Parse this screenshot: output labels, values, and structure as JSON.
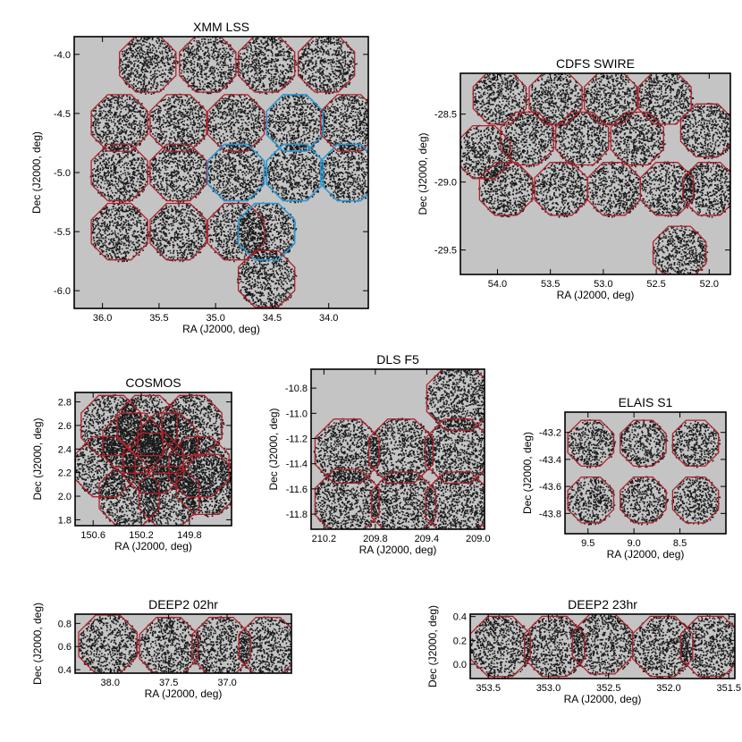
{
  "colors": {
    "background": "#ffffff",
    "coverage": "#c4c4c4",
    "source": "#1a1a1a",
    "field_default": "#b0202c",
    "field_highlight": "#2a97d6"
  },
  "chart_data": [
    {
      "id": "xmm",
      "type": "scatter",
      "title": "XMM LSS",
      "xlabel": "RA (J2000, deg)",
      "ylabel": "Dec (J2000, deg)",
      "xlim": [
        36.25,
        33.65
      ],
      "ylim": [
        -6.15,
        -3.85
      ],
      "xticks": [
        {
          "v": 36.0,
          "label": "36.0"
        },
        {
          "v": 35.5,
          "label": "35.5"
        },
        {
          "v": 35.0,
          "label": "35.0"
        },
        {
          "v": 34.5,
          "label": "34.5"
        },
        {
          "v": 34.0,
          "label": "34.0"
        }
      ],
      "yticks": [
        {
          "v": -4.0,
          "label": "-4.0"
        },
        {
          "v": -4.5,
          "label": "-4.5"
        },
        {
          "v": -5.0,
          "label": "-5.0"
        },
        {
          "v": -5.5,
          "label": "-5.5"
        },
        {
          "v": -6.0,
          "label": "-6.0"
        }
      ],
      "radius": 0.27,
      "fields": [
        {
          "ra": 35.6,
          "dec": -4.08,
          "highlight": false
        },
        {
          "ra": 35.07,
          "dec": -4.08,
          "highlight": false
        },
        {
          "ra": 34.55,
          "dec": -4.08,
          "highlight": false
        },
        {
          "ra": 34.02,
          "dec": -4.08,
          "highlight": false
        },
        {
          "ra": 35.85,
          "dec": -4.58,
          "highlight": false
        },
        {
          "ra": 35.33,
          "dec": -4.58,
          "highlight": false
        },
        {
          "ra": 34.82,
          "dec": -4.58,
          "highlight": false
        },
        {
          "ra": 34.3,
          "dec": -4.58,
          "highlight": true
        },
        {
          "ra": 33.82,
          "dec": -4.58,
          "highlight": false
        },
        {
          "ra": 35.85,
          "dec": -5.0,
          "highlight": false
        },
        {
          "ra": 35.33,
          "dec": -5.0,
          "highlight": false
        },
        {
          "ra": 34.82,
          "dec": -5.0,
          "highlight": true
        },
        {
          "ra": 34.3,
          "dec": -5.0,
          "highlight": true
        },
        {
          "ra": 33.82,
          "dec": -5.0,
          "highlight": true
        },
        {
          "ra": 35.85,
          "dec": -5.5,
          "highlight": false
        },
        {
          "ra": 35.33,
          "dec": -5.5,
          "highlight": false
        },
        {
          "ra": 34.82,
          "dec": -5.5,
          "highlight": false
        },
        {
          "ra": 34.55,
          "dec": -5.5,
          "highlight": true
        },
        {
          "ra": 34.55,
          "dec": -5.9,
          "highlight": false
        }
      ]
    },
    {
      "id": "cdfs",
      "type": "scatter",
      "title": "CDFS SWIRE",
      "xlabel": "RA (J2000, deg)",
      "ylabel": "Dec (J2000, deg)",
      "xlim": [
        54.35,
        51.8
      ],
      "ylim": [
        -29.68,
        -28.2
      ],
      "xticks": [
        {
          "v": 54.0,
          "label": "54.0"
        },
        {
          "v": 53.5,
          "label": "53.5"
        },
        {
          "v": 53.0,
          "label": "53.0"
        },
        {
          "v": 52.5,
          "label": "52.5"
        },
        {
          "v": 52.0,
          "label": "52.0"
        }
      ],
      "yticks": [
        {
          "v": -28.5,
          "label": "-28.5"
        },
        {
          "v": -29.0,
          "label": "-29.0"
        },
        {
          "v": -29.5,
          "label": "-29.5"
        }
      ],
      "radius": 0.27,
      "fields": [
        {
          "ra": 53.98,
          "dec": -28.38,
          "highlight": false
        },
        {
          "ra": 53.45,
          "dec": -28.38,
          "highlight": false
        },
        {
          "ra": 52.93,
          "dec": -28.38,
          "highlight": false
        },
        {
          "ra": 52.42,
          "dec": -28.38,
          "highlight": false
        },
        {
          "ra": 53.72,
          "dec": -28.68,
          "highlight": false
        },
        {
          "ra": 53.2,
          "dec": -28.68,
          "highlight": false
        },
        {
          "ra": 52.68,
          "dec": -28.68,
          "highlight": false
        },
        {
          "ra": 52.02,
          "dec": -28.62,
          "highlight": false
        },
        {
          "ra": 54.13,
          "dec": -28.78,
          "highlight": false
        },
        {
          "ra": 53.92,
          "dec": -29.05,
          "highlight": false
        },
        {
          "ra": 53.4,
          "dec": -29.05,
          "highlight": false
        },
        {
          "ra": 52.9,
          "dec": -29.05,
          "highlight": false
        },
        {
          "ra": 52.4,
          "dec": -29.05,
          "highlight": false
        },
        {
          "ra": 52.0,
          "dec": -29.05,
          "highlight": false
        },
        {
          "ra": 52.28,
          "dec": -29.52,
          "highlight": false
        }
      ]
    },
    {
      "id": "cosmos",
      "type": "scatter",
      "title": "COSMOS",
      "xlabel": "RA (J2000, deg)",
      "ylabel": "Dec (J2000, deg)",
      "xlim": [
        150.75,
        149.45
      ],
      "ylim": [
        1.75,
        2.88
      ],
      "xticks": [
        {
          "v": 150.6,
          "label": "150.6"
        },
        {
          "v": 150.2,
          "label": "150.2"
        },
        {
          "v": 149.8,
          "label": "149.8"
        }
      ],
      "yticks": [
        {
          "v": 1.8,
          "label": "1.8"
        },
        {
          "v": 2.0,
          "label": "2.0"
        },
        {
          "v": 2.2,
          "label": "2.2"
        },
        {
          "v": 2.4,
          "label": "2.4"
        },
        {
          "v": 2.6,
          "label": "2.6"
        },
        {
          "v": 2.8,
          "label": "2.8"
        }
      ],
      "radius": 0.27,
      "fields": [
        {
          "ra": 150.45,
          "dec": 2.6,
          "highlight": false
        },
        {
          "ra": 150.15,
          "dec": 2.6,
          "highlight": false
        },
        {
          "ra": 149.78,
          "dec": 2.6,
          "highlight": false
        },
        {
          "ra": 150.27,
          "dec": 2.45,
          "highlight": false
        },
        {
          "ra": 149.98,
          "dec": 2.45,
          "highlight": false
        },
        {
          "ra": 150.5,
          "dec": 2.25,
          "highlight": false
        },
        {
          "ra": 150.1,
          "dec": 2.28,
          "highlight": false
        },
        {
          "ra": 149.72,
          "dec": 2.25,
          "highlight": false
        },
        {
          "ra": 150.3,
          "dec": 2.0,
          "highlight": false
        },
        {
          "ra": 149.97,
          "dec": 2.0,
          "highlight": false
        },
        {
          "ra": 149.66,
          "dec": 2.1,
          "highlight": false
        }
      ]
    },
    {
      "id": "dls",
      "type": "scatter",
      "title": "DLS F5",
      "xlabel": "RA (J2000, deg)",
      "ylabel": "Dec (J2000, deg)",
      "xlim": [
        210.3,
        208.95
      ],
      "ylim": [
        -11.92,
        -10.65
      ],
      "xticks": [
        {
          "v": 210.2,
          "label": "210.2"
        },
        {
          "v": 209.8,
          "label": "209.8"
        },
        {
          "v": 209.4,
          "label": "209.4"
        },
        {
          "v": 209.0,
          "label": "209.0"
        }
      ],
      "yticks": [
        {
          "v": -10.8,
          "label": "-10.8"
        },
        {
          "v": -11.0,
          "label": "-11.0"
        },
        {
          "v": -11.2,
          "label": "-11.2"
        },
        {
          "v": -11.4,
          "label": "-11.4"
        },
        {
          "v": -11.6,
          "label": "-11.6"
        },
        {
          "v": -11.8,
          "label": "-11.8"
        }
      ],
      "radius": 0.27,
      "fields": [
        {
          "ra": 209.15,
          "dec": -10.88,
          "highlight": false
        },
        {
          "ra": 210.02,
          "dec": -11.3,
          "highlight": false
        },
        {
          "ra": 209.6,
          "dec": -11.3,
          "highlight": false
        },
        {
          "ra": 209.16,
          "dec": -11.3,
          "highlight": false
        },
        {
          "ra": 210.02,
          "dec": -11.7,
          "highlight": false
        },
        {
          "ra": 209.58,
          "dec": -11.72,
          "highlight": false
        },
        {
          "ra": 209.16,
          "dec": -11.72,
          "highlight": false
        }
      ]
    },
    {
      "id": "elais",
      "type": "scatter",
      "title": "ELAIS S1",
      "xlabel": "RA (J2000, deg)",
      "ylabel": "Dec (J2000, deg)",
      "xlim": [
        9.75,
        8.0
      ],
      "ylim": [
        -43.95,
        -43.05
      ],
      "xticks": [
        {
          "v": 9.5,
          "label": "9.5"
        },
        {
          "v": 9.0,
          "label": "9.0"
        },
        {
          "v": 8.5,
          "label": "8.5"
        }
      ],
      "yticks": [
        {
          "v": -43.2,
          "label": "-43.2"
        },
        {
          "v": -43.4,
          "label": "-43.4"
        },
        {
          "v": -43.6,
          "label": "-43.6"
        },
        {
          "v": -43.8,
          "label": "-43.8"
        }
      ],
      "radius": 0.27,
      "fields": [
        {
          "ra": 9.47,
          "dec": -43.28,
          "highlight": false
        },
        {
          "ra": 8.9,
          "dec": -43.28,
          "highlight": false
        },
        {
          "ra": 8.33,
          "dec": -43.28,
          "highlight": false
        },
        {
          "ra": 9.47,
          "dec": -43.7,
          "highlight": false
        },
        {
          "ra": 8.9,
          "dec": -43.7,
          "highlight": false
        },
        {
          "ra": 8.33,
          "dec": -43.7,
          "highlight": false
        }
      ]
    },
    {
      "id": "deep2_02",
      "type": "scatter",
      "title": "DEEP2 02hr",
      "xlabel": "RA (J2000, deg)",
      "ylabel": "Dec (J2000, deg)",
      "xlim": [
        38.3,
        36.45
      ],
      "ylim": [
        0.37,
        0.88
      ],
      "xticks": [
        {
          "v": 38.0,
          "label": "38.0"
        },
        {
          "v": 37.5,
          "label": "37.5"
        },
        {
          "v": 37.0,
          "label": "37.0"
        }
      ],
      "yticks": [
        {
          "v": 0.4,
          "label": "0.4"
        },
        {
          "v": 0.6,
          "label": "0.6"
        },
        {
          "v": 0.8,
          "label": "0.8"
        }
      ],
      "radius": 0.27,
      "fields": [
        {
          "ra": 38.02,
          "dec": 0.62,
          "highlight": false
        },
        {
          "ra": 37.5,
          "dec": 0.6,
          "highlight": false
        },
        {
          "ra": 37.05,
          "dec": 0.6,
          "highlight": false
        },
        {
          "ra": 36.65,
          "dec": 0.6,
          "highlight": false
        }
      ]
    },
    {
      "id": "deep2_23",
      "type": "scatter",
      "title": "DEEP2 23hr",
      "xlabel": "RA (J2000, deg)",
      "ylabel": "Dec (J2000, deg)",
      "xlim": [
        353.65,
        351.45
      ],
      "ylim": [
        -0.12,
        0.42
      ],
      "xticks": [
        {
          "v": 353.5,
          "label": "353.5"
        },
        {
          "v": 353.0,
          "label": "353.0"
        },
        {
          "v": 352.5,
          "label": "352.5"
        },
        {
          "v": 352.0,
          "label": "352.0"
        },
        {
          "v": 351.5,
          "label": "351.5"
        }
      ],
      "yticks": [
        {
          "v": 0.0,
          "label": "0.0"
        },
        {
          "v": 0.2,
          "label": "0.2"
        },
        {
          "v": 0.4,
          "label": "0.4"
        }
      ],
      "radius": 0.27,
      "fields": [
        {
          "ra": 353.4,
          "dec": 0.15,
          "highlight": false
        },
        {
          "ra": 352.95,
          "dec": 0.15,
          "highlight": false
        },
        {
          "ra": 352.55,
          "dec": 0.17,
          "highlight": false
        },
        {
          "ra": 352.05,
          "dec": 0.15,
          "highlight": false
        },
        {
          "ra": 351.65,
          "dec": 0.15,
          "highlight": false
        }
      ]
    }
  ]
}
